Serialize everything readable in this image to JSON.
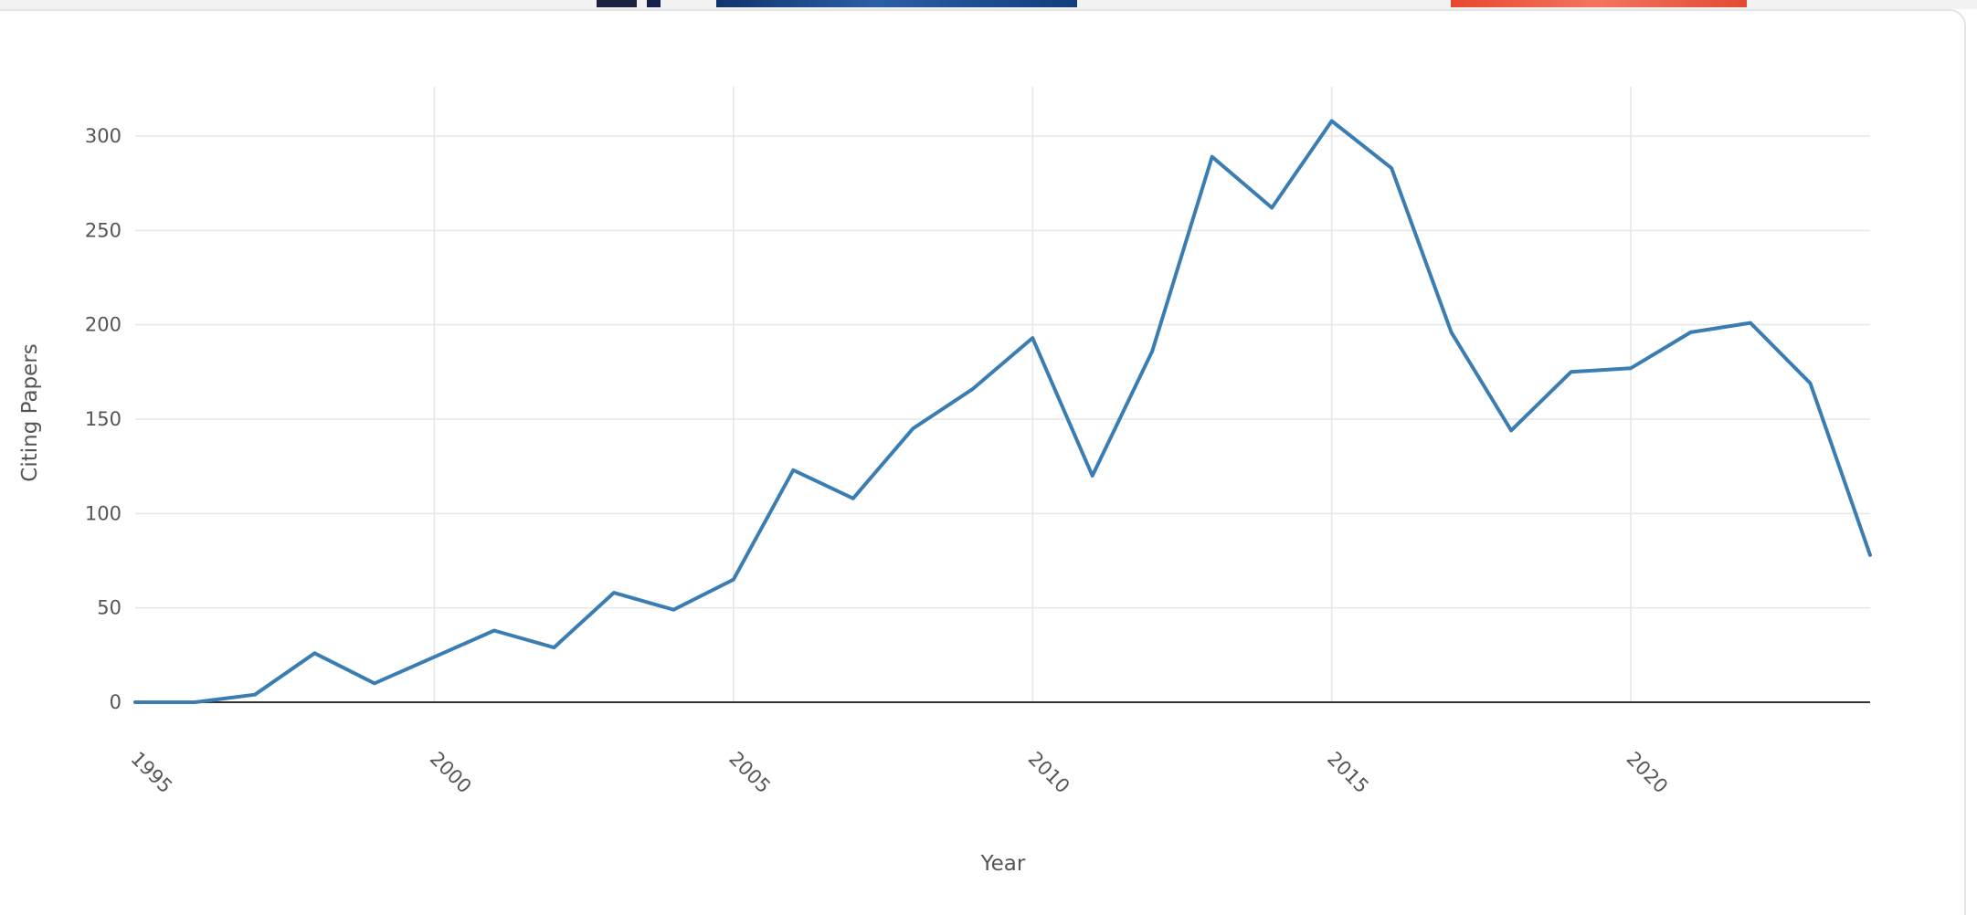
{
  "colors": {
    "line": "#3a7db3",
    "grid": "#e6e6e6",
    "zero_line": "#333333",
    "text": "#555555"
  },
  "chart_data": {
    "type": "line",
    "title": "",
    "xlabel": "Year",
    "ylabel": "Citing Papers",
    "xlim": [
      1995,
      2024
    ],
    "ylim": [
      0,
      320
    ],
    "x_ticks": [
      1995,
      2000,
      2005,
      2010,
      2015,
      2020
    ],
    "y_ticks": [
      0,
      50,
      100,
      150,
      200,
      250,
      300
    ],
    "grid": true,
    "legend": "none",
    "series": [
      {
        "x": [
          1995,
          1996,
          1997,
          1998,
          1999,
          2000,
          2001,
          2002,
          2003,
          2004,
          2005,
          2006,
          2007,
          2008,
          2009,
          2010,
          2011,
          2012,
          2013,
          2014,
          2015,
          2016,
          2017,
          2018,
          2019,
          2020,
          2021,
          2022,
          2023,
          2024
        ],
        "y": [
          0,
          0,
          4,
          26,
          10,
          24,
          38,
          29,
          58,
          49,
          65,
          123,
          108,
          145,
          166,
          193,
          120,
          186,
          289,
          262,
          308,
          283,
          196,
          144,
          175,
          177,
          196,
          201,
          169,
          78
        ]
      }
    ]
  }
}
